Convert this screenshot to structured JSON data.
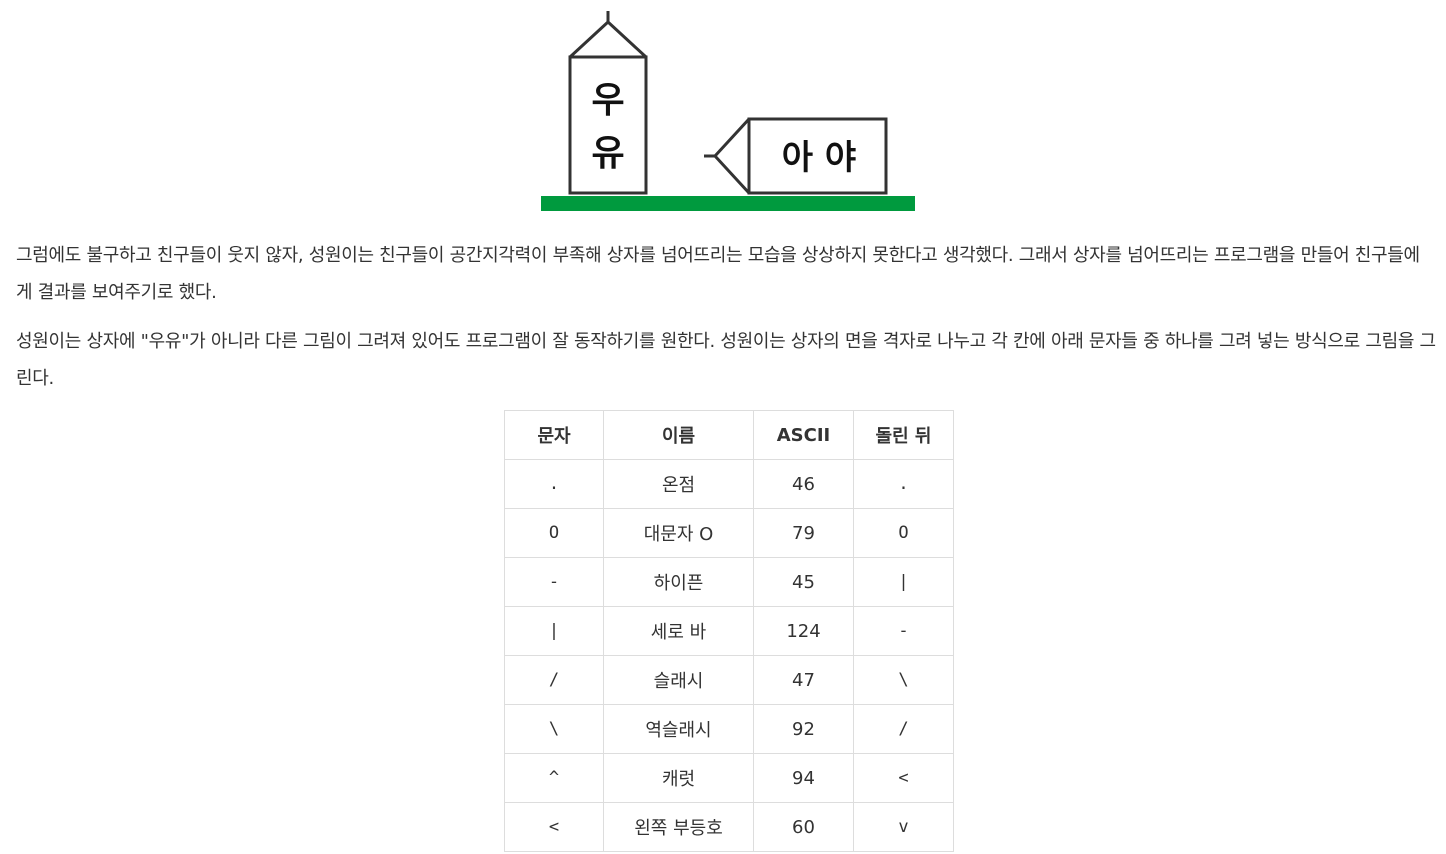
{
  "figure": {
    "upright_box_text": [
      "우",
      "유"
    ],
    "fallen_box_text": "아 야",
    "ground_color": "#009a3e",
    "outline_color": "#333333"
  },
  "paragraphs": [
    "그럼에도 불구하고 친구들이 웃지 않자, 성원이는 친구들이 공간지각력이 부족해 상자를 넘어뜨리는 모습을 상상하지 못한다고 생각했다. 그래서 상자를 넘어뜨리는 프로그램을 만들어 친구들에게 결과를 보여주기로 했다.",
    "성원이는 상자에 \"우유\"가 아니라 다른 그림이 그려져 있어도 프로그램이 잘 동작하기를 원한다. 성원이는 상자의 면을 격자로 나누고 각 칸에 아래 문자들 중 하나를 그려 넣는 방식으로 그림을 그린다."
  ],
  "table": {
    "headers": [
      "문자",
      "이름",
      "ASCII",
      "돌린 뒤"
    ],
    "rows": [
      [
        ".",
        "온점",
        "46",
        "."
      ],
      [
        "O",
        "대문자 O",
        "79",
        "O"
      ],
      [
        "-",
        "하이픈",
        "45",
        "|"
      ],
      [
        "|",
        "세로 바",
        "124",
        "-"
      ],
      [
        "/",
        "슬래시",
        "47",
        "\\"
      ],
      [
        "\\",
        "역슬래시",
        "92",
        "/"
      ],
      [
        "^",
        "캐럿",
        "94",
        "<"
      ],
      [
        "<",
        "왼쪽 부등호",
        "60",
        "v"
      ]
    ]
  }
}
